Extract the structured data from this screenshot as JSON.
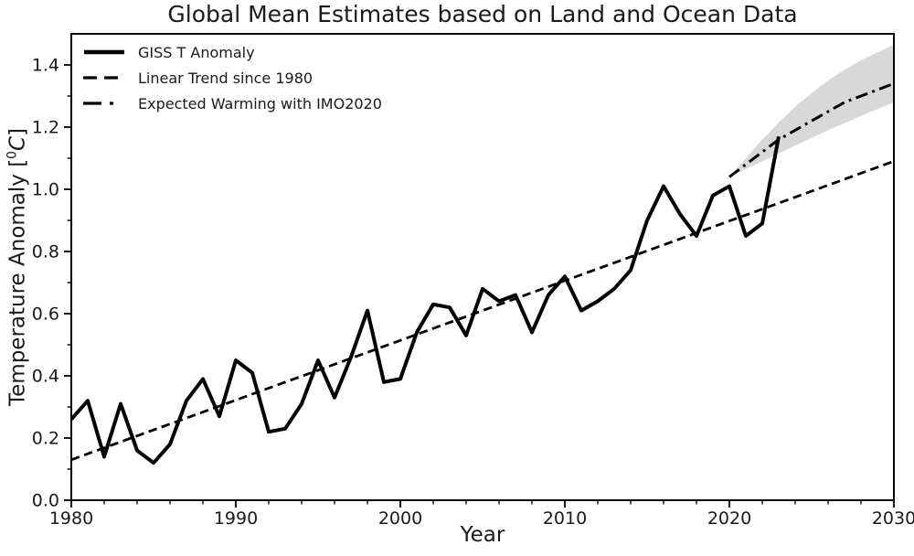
{
  "title": "Global Mean Estimates based on Land and Ocean Data",
  "axes": {
    "xlabel": "Year",
    "ylabel_pre": "Temperature Anomaly [",
    "ylabel_sup": "0",
    "ylabel_unit": "C",
    "ylabel_post": "]"
  },
  "legend": {
    "items": [
      {
        "label": "GISS T Anomaly",
        "line_style": "solid"
      },
      {
        "label": "Linear Trend since 1980",
        "line_style": "dashed"
      },
      {
        "label": "Expected Warming with IMO2020",
        "line_style": "dashdot"
      }
    ]
  },
  "chart_data": {
    "type": "line",
    "title": "Global Mean Estimates based on Land and Ocean Data",
    "xlabel": "Year",
    "ylabel": "Temperature Anomaly [°C]",
    "xlim": [
      1980,
      2030
    ],
    "ylim": [
      0.0,
      1.5
    ],
    "x_ticks": [
      1980,
      1990,
      2000,
      2010,
      2020,
      2030
    ],
    "x_tick_labels": [
      "1980",
      "1990",
      "2000",
      "2010",
      "2020",
      "2030"
    ],
    "x_minor_step": 2,
    "y_ticks": [
      0.0,
      0.2,
      0.4,
      0.6,
      0.8,
      1.0,
      1.2,
      1.4
    ],
    "y_tick_labels": [
      "0.0",
      "0.2",
      "0.4",
      "0.6",
      "0.8",
      "1.0",
      "1.2",
      "1.4"
    ],
    "y_minor_step": 0.1,
    "grid": false,
    "legend_position": "upper-left",
    "colors": {
      "line": "#000000",
      "band": "#d8d8d8",
      "background": "#ffffff"
    },
    "series": [
      {
        "name": "GISS T Anomaly",
        "style": "solid",
        "x": [
          1980,
          1981,
          1982,
          1983,
          1984,
          1985,
          1986,
          1987,
          1988,
          1989,
          1990,
          1991,
          1992,
          1993,
          1994,
          1995,
          1996,
          1997,
          1998,
          1999,
          2000,
          2001,
          2002,
          2003,
          2004,
          2005,
          2006,
          2007,
          2008,
          2009,
          2010,
          2011,
          2012,
          2013,
          2014,
          2015,
          2016,
          2017,
          2018,
          2019,
          2020,
          2021,
          2022,
          2023
        ],
        "values": [
          0.26,
          0.32,
          0.14,
          0.31,
          0.16,
          0.12,
          0.18,
          0.32,
          0.39,
          0.27,
          0.45,
          0.41,
          0.22,
          0.23,
          0.31,
          0.45,
          0.33,
          0.46,
          0.61,
          0.38,
          0.39,
          0.54,
          0.63,
          0.62,
          0.53,
          0.68,
          0.64,
          0.66,
          0.54,
          0.66,
          0.72,
          0.61,
          0.64,
          0.68,
          0.74,
          0.9,
          1.01,
          0.92,
          0.85,
          0.98,
          1.01,
          0.85,
          0.89,
          1.17
        ]
      },
      {
        "name": "Linear Trend since 1980",
        "style": "dashed",
        "x": [
          1980,
          2030
        ],
        "values": [
          0.13,
          1.09
        ]
      },
      {
        "name": "Expected Warming with IMO2020",
        "style": "dashdot",
        "x": [
          2020,
          2021,
          2022,
          2023,
          2024,
          2025,
          2026,
          2027,
          2028,
          2029,
          2030
        ],
        "values": [
          1.04,
          1.08,
          1.12,
          1.16,
          1.19,
          1.22,
          1.25,
          1.28,
          1.3,
          1.32,
          1.34
        ]
      }
    ],
    "uncertainty_band": {
      "series": "Expected Warming with IMO2020",
      "x": [
        2020,
        2021,
        2022,
        2023,
        2024,
        2025,
        2026,
        2027,
        2028,
        2029,
        2030
      ],
      "upper": [
        1.04,
        1.1,
        1.16,
        1.215,
        1.265,
        1.31,
        1.35,
        1.385,
        1.415,
        1.44,
        1.465
      ],
      "lower": [
        1.04,
        1.065,
        1.09,
        1.115,
        1.14,
        1.165,
        1.19,
        1.213,
        1.236,
        1.258,
        1.28
      ]
    }
  }
}
